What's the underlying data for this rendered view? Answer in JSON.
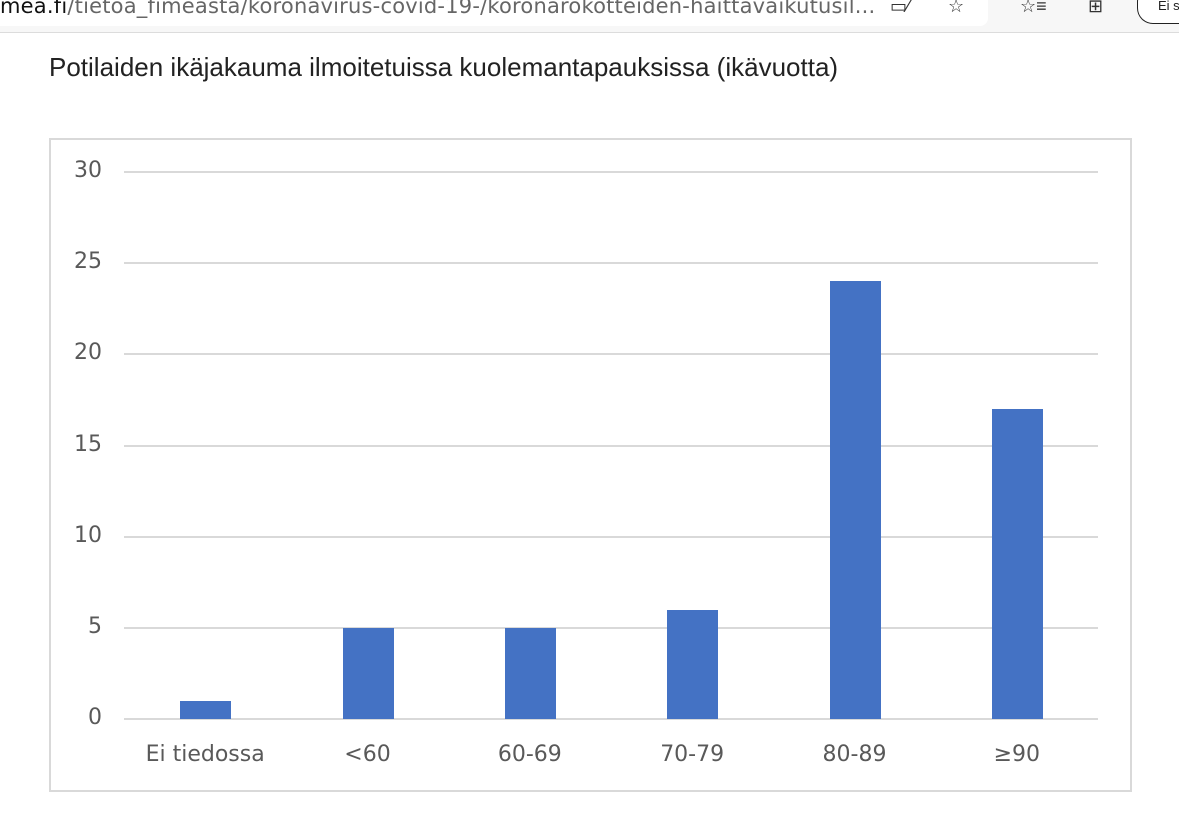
{
  "browser": {
    "url_host": "mea.fi",
    "url_path": "/tietoa_fimeasta/koronavirus-covid-19-/koronarokotteiden-haittavaikutusil...",
    "icons": [
      "read-aloud-icon",
      "add-favorite-icon",
      "favorites-icon",
      "collections-icon"
    ],
    "profile_label": "Ei s"
  },
  "page": {
    "heading": "Potilaiden ikäjakauma ilmoitetuissa kuolemantapauksissa (ikävuotta)"
  },
  "chart_data": {
    "type": "bar",
    "title": "Potilaiden ikäjakauma ilmoitetuissa kuolemantapauksissa (ikävuotta)",
    "xlabel": "",
    "ylabel": "",
    "categories": [
      "Ei tiedossa",
      "<60",
      "60-69",
      "70-79",
      "80-89",
      "≥90"
    ],
    "values": [
      1,
      5,
      5,
      6,
      24,
      17
    ],
    "ylim": [
      0,
      30
    ],
    "yticks": [
      0,
      5,
      10,
      15,
      20,
      25,
      30
    ],
    "grid": true,
    "legend": null,
    "bar_color": "#4472c4"
  }
}
